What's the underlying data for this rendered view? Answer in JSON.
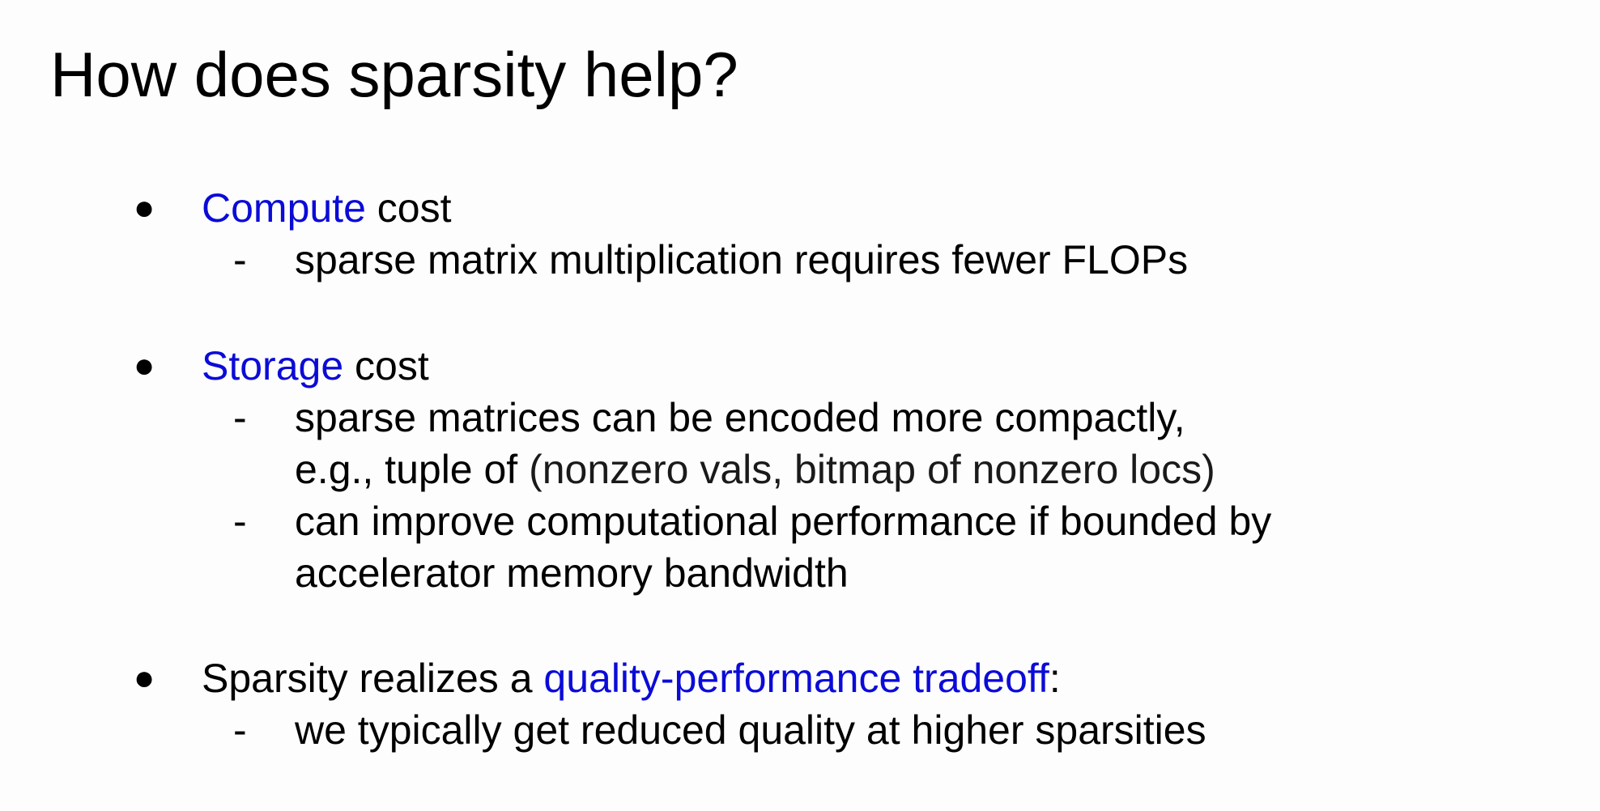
{
  "slide": {
    "title": "How does sparsity help?"
  },
  "bullets": {
    "compute": {
      "marker": "●",
      "highlight": "Compute",
      "rest": " cost",
      "subs": [
        {
          "dash": "-",
          "lines": [
            "sparse matrix multiplication requires fewer FLOPs"
          ]
        }
      ]
    },
    "storage": {
      "marker": "●",
      "highlight": "Storage",
      "rest": " cost",
      "sub1": {
        "dash": "-",
        "line1": "sparse matrices can be encoded more compactly,",
        "line2_prefix": "e.g., tuple of ",
        "line2_light": "(nonzero vals, bitmap of nonzero locs)"
      },
      "sub2": {
        "dash": "-",
        "line1": "can improve computational performance if bounded by",
        "line2": "accelerator memory bandwidth"
      }
    },
    "tradeoff": {
      "marker": "●",
      "prefix": "Sparsity realizes a ",
      "highlight": "quality-performance tradeoff",
      "suffix": ":",
      "sub": {
        "dash": "-",
        "line1": "we typically get reduced quality at higher sparsities"
      }
    }
  },
  "colors": {
    "accent": "#0b0bd8",
    "text": "#000000",
    "background": "#fdfdfd"
  }
}
